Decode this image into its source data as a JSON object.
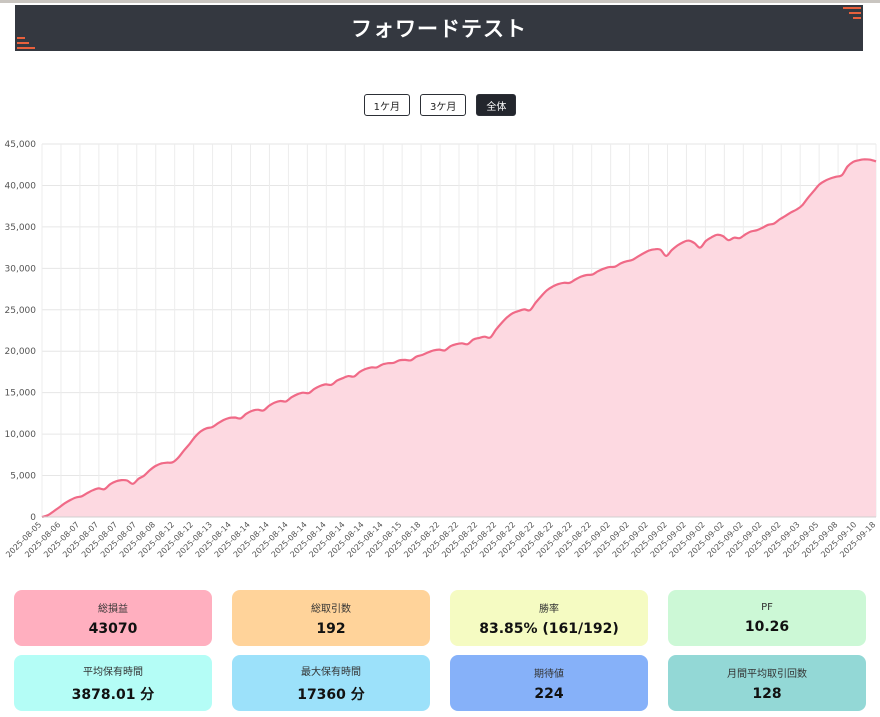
{
  "header": {
    "title": "フォワードテスト"
  },
  "range_buttons": [
    {
      "label": "1ケ月",
      "active": false
    },
    {
      "label": "3ケ月",
      "active": false
    },
    {
      "label": "全体",
      "active": true
    }
  ],
  "stats": [
    {
      "label": "総損益",
      "value": "43070",
      "color": "#ffafbf"
    },
    {
      "label": "総取引数",
      "value": "192",
      "color": "#ffd39a"
    },
    {
      "label": "勝率",
      "value": "83.85% (161/192)",
      "color": "#f5fbc2"
    },
    {
      "label": "PF",
      "value": "10.26",
      "color": "#ccf8d6"
    },
    {
      "label": "平均保有時間",
      "value": "3878.01 分",
      "color": "#b4fdf6"
    },
    {
      "label": "最大保有時間",
      "value": "17360 分",
      "color": "#9ce1fa"
    },
    {
      "label": "期待値",
      "value": "224",
      "color": "#86b1f9"
    },
    {
      "label": "月間平均取引回数",
      "value": "128",
      "color": "#93d8d6"
    }
  ],
  "colors": {
    "line": "#f06a87",
    "fill": "#fdd9e1",
    "header_bg": "#343840",
    "accent": "#e8603c"
  },
  "chart_data": {
    "type": "area",
    "title": "",
    "xlabel": "",
    "ylabel": "",
    "ylim": [
      0,
      45000
    ],
    "yticks": [
      0,
      5000,
      10000,
      15000,
      20000,
      25000,
      30000,
      35000,
      40000,
      45000
    ],
    "grid": true,
    "x_tick_labels": [
      "2025-08-05",
      "2025-08-06",
      "2025-08-07",
      "2025-08-07",
      "2025-08-07",
      "2025-08-07",
      "2025-08-08",
      "2025-08-12",
      "2025-08-12",
      "2025-08-13",
      "2025-08-14",
      "2025-08-14",
      "2025-08-14",
      "2025-08-14",
      "2025-08-14",
      "2025-08-14",
      "2025-08-14",
      "2025-08-14",
      "2025-08-14",
      "2025-08-15",
      "2025-08-18",
      "2025-08-22",
      "2025-08-22",
      "2025-08-22",
      "2025-08-22",
      "2025-08-22",
      "2025-08-22",
      "2025-08-22",
      "2025-08-22",
      "2025-08-22",
      "2025-09-02",
      "2025-09-02",
      "2025-09-02",
      "2025-09-02",
      "2025-09-02",
      "2025-09-02",
      "2025-09-02",
      "2025-09-02",
      "2025-09-02",
      "2025-09-02",
      "2025-09-03",
      "2025-09-05",
      "2025-09-08",
      "2025-09-10",
      "2025-09-18"
    ],
    "series": [
      {
        "values": [
          0,
          200,
          650,
          1150,
          1650,
          2050,
          2350,
          2500,
          2900,
          3250,
          3450,
          3350,
          3950,
          4300,
          4450,
          4400,
          4000,
          4600,
          5000,
          5650,
          6150,
          6450,
          6550,
          6600,
          7150,
          8000,
          8800,
          9700,
          10350,
          10700,
          10850,
          11300,
          11700,
          11950,
          12000,
          11900,
          12450,
          12800,
          12950,
          12850,
          13400,
          13800,
          14000,
          13950,
          14450,
          14800,
          15000,
          14950,
          15450,
          15800,
          16000,
          15950,
          16450,
          16750,
          17000,
          16950,
          17500,
          17850,
          18050,
          18050,
          18400,
          18550,
          18600,
          18900,
          18950,
          18900,
          19350,
          19550,
          19850,
          20100,
          20200,
          20100,
          20600,
          20850,
          20950,
          20850,
          21400,
          21600,
          21750,
          21650,
          22600,
          23400,
          24100,
          24600,
          24850,
          25050,
          24950,
          25850,
          26650,
          27350,
          27800,
          28100,
          28250,
          28250,
          28650,
          29000,
          29200,
          29250,
          29650,
          29950,
          30150,
          30200,
          30600,
          30850,
          31000,
          31400,
          31800,
          32150,
          32300,
          32250,
          31500,
          32200,
          32750,
          33150,
          33350,
          33050,
          32500,
          33300,
          33750,
          34050,
          33900,
          33400,
          33700,
          33650,
          34100,
          34450,
          34600,
          34900,
          35250,
          35400,
          35900,
          36300,
          36750,
          37100,
          37600,
          38500,
          39300,
          40100,
          40550,
          40850,
          41050,
          41250,
          42300,
          42850,
          43050,
          43150,
          43100,
          42900
        ]
      }
    ]
  }
}
